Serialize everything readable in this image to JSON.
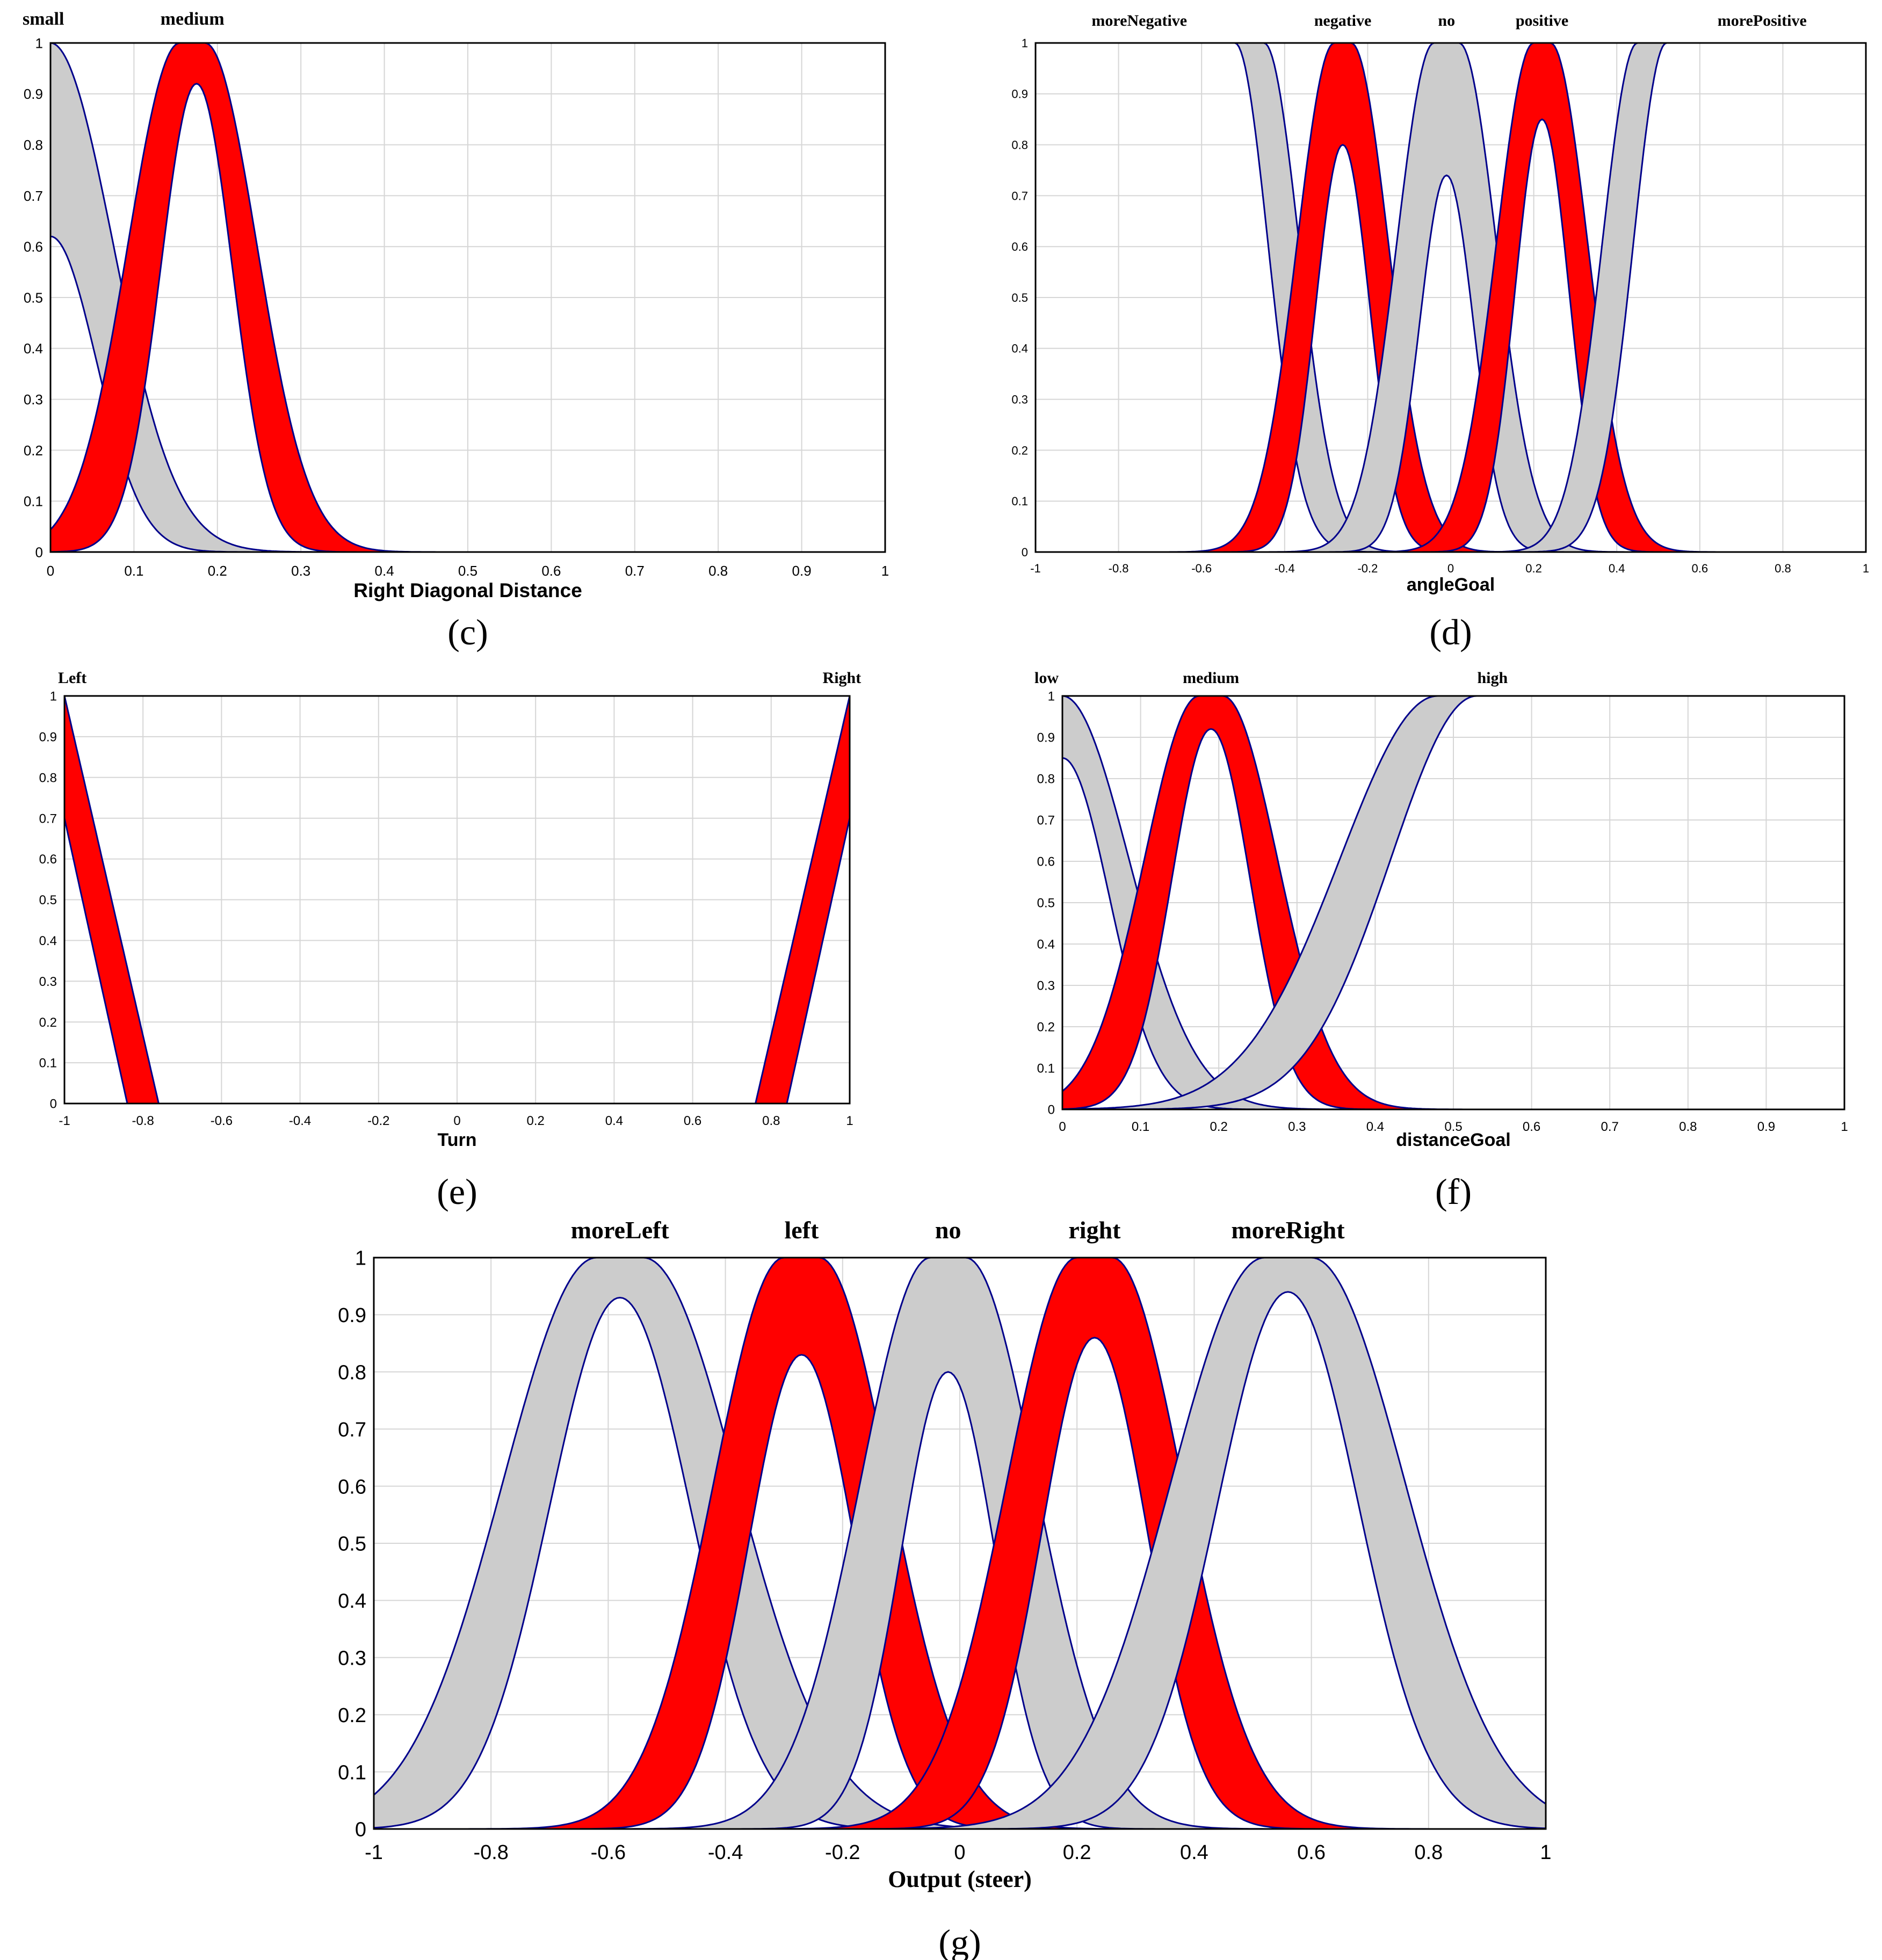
{
  "colors": {
    "red": "#ff0000",
    "gray": "#cccccc",
    "outline": "#00008b",
    "grid": "#d6d6d6"
  },
  "chart_data": [
    {
      "id": "c",
      "type": "line",
      "subtype": "interval-type-2 membership functions",
      "caption": "(c)",
      "xlabel": "Right Diagonal Distance",
      "ylabel": "",
      "xlim": [
        0,
        1
      ],
      "ylim": [
        0,
        1
      ],
      "grid": true,
      "x_ticks": [
        0,
        0.1,
        0.2,
        0.3,
        0.4,
        0.5,
        0.6,
        0.7,
        0.8,
        0.9,
        1
      ],
      "x_tick_labels": [
        "0",
        "0.1",
        "0.2",
        "0.3",
        "0.4",
        "0.5",
        "0.6",
        "0.7",
        "0.8",
        "0.9",
        "1"
      ],
      "y_ticks": [
        0,
        0.1,
        0.2,
        0.3,
        0.4,
        0.5,
        0.6,
        0.7,
        0.8,
        0.9,
        1
      ],
      "y_tick_labels": [
        "0",
        "0.1",
        "0.2",
        "0.3",
        "0.4",
        "0.5",
        "0.6",
        "0.7",
        "0.8",
        "0.9",
        "1"
      ],
      "series": [
        {
          "name": "small",
          "color": "gray",
          "label_x": 0,
          "upper": {
            "type": "gauss",
            "center": 0,
            "sigma": 0.075
          },
          "lower": {
            "type": "gauss",
            "center": 0,
            "sigma": 0.055,
            "height": 0.62
          }
        },
        {
          "name": "medium",
          "color": "red",
          "label_x": 0.17,
          "upper": {
            "type": "gauss2",
            "c1": 0.155,
            "c2": 0.185,
            "sigma": 0.062
          },
          "lower": {
            "type": "gauss",
            "center": 0.175,
            "sigma": 0.043,
            "height": 0.92
          }
        }
      ]
    },
    {
      "id": "d",
      "type": "line",
      "subtype": "interval-type-2 membership functions",
      "caption": "(d)",
      "xlabel": "angleGoal",
      "ylabel": "",
      "xlim": [
        -1,
        1
      ],
      "ylim": [
        0,
        1
      ],
      "grid": true,
      "x_ticks": [
        -1,
        -0.8,
        -0.6,
        -0.4,
        -0.2,
        0,
        0.2,
        0.4,
        0.6,
        0.8,
        1
      ],
      "x_tick_labels": [
        "-1",
        "-0.8",
        "-0.6",
        "-0.4",
        "-0.2",
        "0",
        "0.2",
        "0.4",
        "0.6",
        "0.8",
        "1"
      ],
      "y_ticks": [
        0,
        0.1,
        0.2,
        0.3,
        0.4,
        0.5,
        0.6,
        0.7,
        0.8,
        0.9,
        1
      ],
      "y_tick_labels": [
        "0",
        "0.1",
        "0.2",
        "0.3",
        "0.4",
        "0.5",
        "0.6",
        "0.7",
        "0.8",
        "0.9",
        "1"
      ],
      "series": [
        {
          "name": "moreNegative",
          "color": "gray",
          "label_x": -0.75,
          "upper": {
            "type": "zmf",
            "shoulder": -0.45,
            "sigma": 0.085
          },
          "lower": {
            "type": "zmf",
            "shoulder": -0.52,
            "sigma": 0.08
          }
        },
        {
          "name": "negative",
          "color": "red",
          "label_x": -0.26,
          "upper": {
            "type": "gauss2",
            "c1": -0.28,
            "c2": -0.24,
            "sigma": 0.09
          },
          "lower": {
            "type": "gauss",
            "center": -0.26,
            "sigma": 0.065,
            "height": 0.8
          }
        },
        {
          "name": "no",
          "color": "gray",
          "label_x": -0.01,
          "upper": {
            "type": "gauss2",
            "c1": -0.04,
            "c2": 0.02,
            "sigma": 0.09
          },
          "lower": {
            "type": "gauss",
            "center": -0.01,
            "sigma": 0.065,
            "height": 0.74
          }
        },
        {
          "name": "positive",
          "color": "red",
          "label_x": 0.22,
          "upper": {
            "type": "gauss2",
            "c1": 0.2,
            "c2": 0.24,
            "sigma": 0.09
          },
          "lower": {
            "type": "gauss",
            "center": 0.22,
            "sigma": 0.065,
            "height": 0.85
          }
        },
        {
          "name": "morePositive",
          "color": "gray",
          "label_x": 0.75,
          "upper": {
            "type": "smf",
            "shoulder": 0.45,
            "sigma": 0.085
          },
          "lower": {
            "type": "smf",
            "shoulder": 0.52,
            "sigma": 0.08
          }
        }
      ]
    },
    {
      "id": "e",
      "type": "line",
      "subtype": "interval-type-2 membership functions",
      "caption": "(e)",
      "xlabel": "Turn",
      "ylabel": "",
      "xlim": [
        -1,
        1
      ],
      "ylim": [
        0,
        1
      ],
      "grid": true,
      "x_ticks": [
        -1,
        -0.8,
        -0.6,
        -0.4,
        -0.2,
        0,
        0.2,
        0.4,
        0.6,
        0.8,
        1
      ],
      "x_tick_labels": [
        "-1",
        "-0.8",
        "-0.6",
        "-0.4",
        "-0.2",
        "0",
        "0.2",
        "0.4",
        "0.6",
        "0.8",
        "1"
      ],
      "y_ticks": [
        0,
        0.1,
        0.2,
        0.3,
        0.4,
        0.5,
        0.6,
        0.7,
        0.8,
        0.9,
        1
      ],
      "y_tick_labels": [
        "0",
        "0.1",
        "0.2",
        "0.3",
        "0.4",
        "0.5",
        "0.6",
        "0.7",
        "0.8",
        "0.9",
        "1"
      ],
      "series": [
        {
          "name": "Left",
          "color": "red",
          "label_x": -0.98,
          "upper": {
            "type": "linear-down",
            "start": -1,
            "end": -0.76
          },
          "lower": {
            "type": "linear-down",
            "start": -1,
            "end": -0.84,
            "height": 0.7
          }
        },
        {
          "name": "Right",
          "color": "red",
          "label_x": 0.98,
          "upper": {
            "type": "linear-up",
            "start": 0.76,
            "end": 1
          },
          "lower": {
            "type": "linear-up",
            "start": 0.84,
            "end": 1,
            "height": 0.7
          }
        }
      ]
    },
    {
      "id": "f",
      "type": "line",
      "subtype": "interval-type-2 membership functions",
      "caption": "(f)",
      "xlabel": "distanceGoal",
      "ylabel": "",
      "xlim": [
        0,
        1
      ],
      "ylim": [
        0,
        1
      ],
      "grid": true,
      "x_ticks": [
        0,
        0.1,
        0.2,
        0.3,
        0.4,
        0.5,
        0.6,
        0.7,
        0.8,
        0.9,
        1
      ],
      "x_tick_labels": [
        "0",
        "0.1",
        "0.2",
        "0.3",
        "0.4",
        "0.5",
        "0.6",
        "0.7",
        "0.8",
        "0.9",
        "1"
      ],
      "y_ticks": [
        0,
        0.1,
        0.2,
        0.3,
        0.4,
        0.5,
        0.6,
        0.7,
        0.8,
        0.9,
        1
      ],
      "y_tick_labels": [
        "0",
        "0.1",
        "0.2",
        "0.3",
        "0.4",
        "0.5",
        "0.6",
        "0.7",
        "0.8",
        "0.9",
        "1"
      ],
      "series": [
        {
          "name": "low",
          "color": "gray",
          "label_x": 0,
          "upper": {
            "type": "gauss",
            "center": 0,
            "sigma": 0.085
          },
          "lower": {
            "type": "gauss",
            "center": 0,
            "sigma": 0.06,
            "height": 0.85
          }
        },
        {
          "name": "medium",
          "color": "red",
          "label_x": 0.19,
          "upper": {
            "type": "gauss2",
            "c1": 0.175,
            "c2": 0.205,
            "sigma": 0.07
          },
          "lower": {
            "type": "gauss",
            "center": 0.19,
            "sigma": 0.05,
            "height": 0.92
          }
        },
        {
          "name": "high",
          "color": "gray",
          "label_x": 0.55,
          "upper": {
            "type": "smf",
            "shoulder": 0.48,
            "sigma": 0.125
          },
          "lower": {
            "type": "smf",
            "shoulder": 0.53,
            "sigma": 0.11
          }
        }
      ]
    },
    {
      "id": "g",
      "type": "line",
      "subtype": "interval-type-2 membership functions",
      "caption": "(g)",
      "xlabel": "Output (steer)",
      "ylabel": "",
      "xlim": [
        -1,
        1
      ],
      "ylim": [
        0,
        1
      ],
      "grid": true,
      "x_ticks": [
        -1,
        -0.8,
        -0.6,
        -0.4,
        -0.2,
        0,
        0.2,
        0.4,
        0.6,
        0.8,
        1
      ],
      "x_tick_labels": [
        "-1",
        "-0.8",
        "-0.6",
        "-0.4",
        "-0.2",
        "0",
        "0.2",
        "0.4",
        "0.6",
        "0.8",
        "1"
      ],
      "y_ticks": [
        0,
        0.1,
        0.2,
        0.3,
        0.4,
        0.5,
        0.6,
        0.7,
        0.8,
        0.9,
        1
      ],
      "y_tick_labels": [
        "0",
        "0.1",
        "0.2",
        "0.3",
        "0.4",
        "0.5",
        "0.6",
        "0.7",
        "0.8",
        "0.9",
        "1"
      ],
      "series": [
        {
          "name": "moreLeft",
          "color": "gray",
          "label_x": -0.58,
          "upper": {
            "type": "gauss2",
            "c1": -0.62,
            "c2": -0.54,
            "sigma": 0.16
          },
          "lower": {
            "type": "gauss",
            "center": -0.58,
            "sigma": 0.12,
            "height": 0.93
          }
        },
        {
          "name": "left",
          "color": "red",
          "label_x": -0.27,
          "upper": {
            "type": "gauss2",
            "c1": -0.3,
            "c2": -0.24,
            "sigma": 0.12
          },
          "lower": {
            "type": "gauss",
            "center": -0.27,
            "sigma": 0.09,
            "height": 0.83
          }
        },
        {
          "name": "no",
          "color": "gray",
          "label_x": -0.02,
          "upper": {
            "type": "gauss2",
            "c1": -0.05,
            "c2": 0.01,
            "sigma": 0.12
          },
          "lower": {
            "type": "gauss",
            "center": -0.02,
            "sigma": 0.08,
            "height": 0.8
          }
        },
        {
          "name": "right",
          "color": "red",
          "label_x": 0.23,
          "upper": {
            "type": "gauss2",
            "c1": 0.2,
            "c2": 0.26,
            "sigma": 0.12
          },
          "lower": {
            "type": "gauss",
            "center": 0.23,
            "sigma": 0.09,
            "height": 0.86
          }
        },
        {
          "name": "moreRight",
          "color": "gray",
          "label_x": 0.56,
          "upper": {
            "type": "gauss2",
            "c1": 0.52,
            "c2": 0.6,
            "sigma": 0.16
          },
          "lower": {
            "type": "gauss",
            "center": 0.56,
            "sigma": 0.12,
            "height": 0.94
          }
        }
      ]
    }
  ]
}
